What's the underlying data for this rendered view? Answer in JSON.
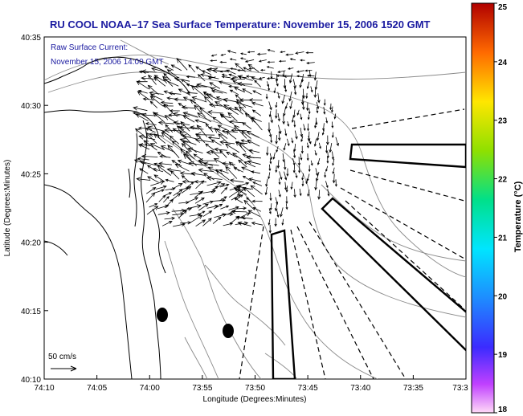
{
  "title": "RU COOL  NOAA–17  Sea Surface Temperature:  November 15, 2006 1520 GMT",
  "current_label_line1": "Raw Surface Current:",
  "current_label_line2": "November 15, 2006 14:00 GMT",
  "scale_label": "50 cm/s",
  "xlabel": "Longitude (Degrees:Minutes)",
  "ylabel": "Latitude (Degrees:Minutes)",
  "x_ticks": [
    "74:10",
    "74:05",
    "74:00",
    "73:55",
    "73:50",
    "73:45",
    "73:40",
    "73:35",
    "73:3"
  ],
  "y_ticks": [
    "40:35",
    "40:30",
    "40:25",
    "40:20",
    "40:15",
    "40:10"
  ],
  "colorbar": {
    "label": "Temperature (°C)",
    "min": 18,
    "max": 25,
    "ticks": [
      "25",
      "24",
      "23",
      "22",
      "21",
      "20",
      "19",
      "18"
    ]
  },
  "colors": {
    "title": "#1a1aa0",
    "coast": "#000000",
    "bathymetry": "#888888",
    "vectors": "#000000"
  }
}
